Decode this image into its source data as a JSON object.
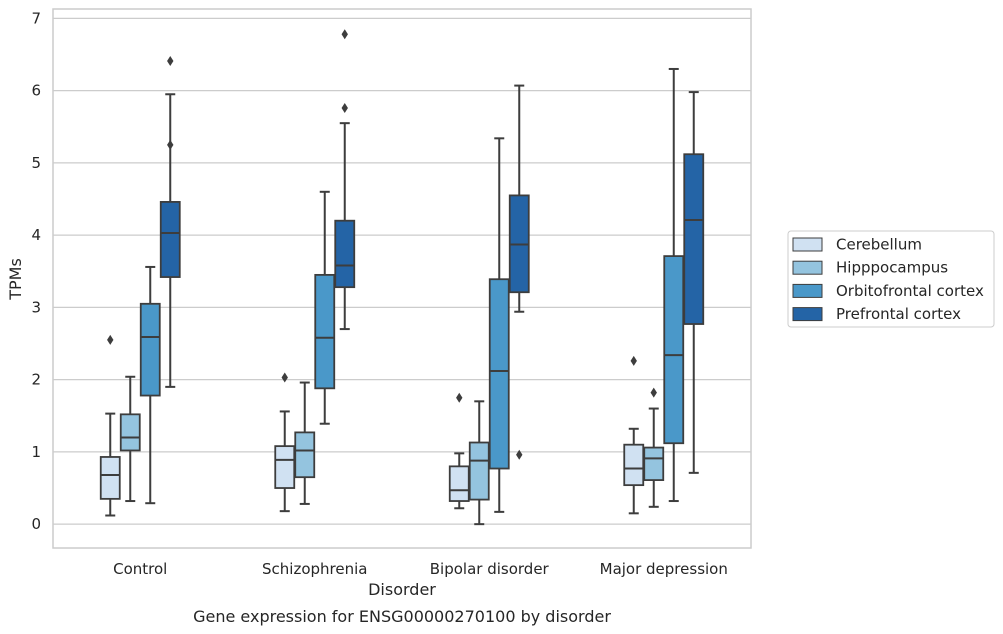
{
  "chart_data": {
    "type": "boxplot",
    "title": "",
    "caption": "Gene expression for ENSG00000270100 by disorder",
    "xlabel": "Disorder",
    "ylabel": "TPMs",
    "ylim": [
      -0.33,
      7.13
    ],
    "yticks": [
      0,
      1,
      2,
      3,
      4,
      5,
      6,
      7
    ],
    "grid": "horizontal",
    "legend_position": "right",
    "categories": [
      "Control",
      "Schizophrenia",
      "Bipolar disorder",
      "Major depression"
    ],
    "series": [
      {
        "name": "Cerebellum",
        "color": "#d0e1f2",
        "boxes": [
          {
            "whisker_low": 0.12,
            "q1": 0.35,
            "median": 0.68,
            "q3": 0.93,
            "whisker_high": 1.53,
            "outliers": [
              2.55
            ]
          },
          {
            "whisker_low": 0.18,
            "q1": 0.5,
            "median": 0.89,
            "q3": 1.08,
            "whisker_high": 1.56,
            "outliers": [
              2.03
            ]
          },
          {
            "whisker_low": 0.22,
            "q1": 0.32,
            "median": 0.47,
            "q3": 0.8,
            "whisker_high": 0.98,
            "outliers": [
              1.75
            ]
          },
          {
            "whisker_low": 0.15,
            "q1": 0.54,
            "median": 0.77,
            "q3": 1.1,
            "whisker_high": 1.32,
            "outliers": [
              2.26
            ]
          }
        ]
      },
      {
        "name": "Hipppocampus",
        "color": "#94c4df",
        "boxes": [
          {
            "whisker_low": 0.32,
            "q1": 1.02,
            "median": 1.2,
            "q3": 1.52,
            "whisker_high": 2.04,
            "outliers": []
          },
          {
            "whisker_low": 0.28,
            "q1": 0.65,
            "median": 1.02,
            "q3": 1.27,
            "whisker_high": 1.96,
            "outliers": []
          },
          {
            "whisker_low": 0.0,
            "q1": 0.34,
            "median": 0.88,
            "q3": 1.13,
            "whisker_high": 1.7,
            "outliers": []
          },
          {
            "whisker_low": 0.24,
            "q1": 0.61,
            "median": 0.91,
            "q3": 1.06,
            "whisker_high": 1.6,
            "outliers": [
              1.82
            ]
          }
        ]
      },
      {
        "name": "Orbitofrontal cortex",
        "color": "#4a98c9",
        "boxes": [
          {
            "whisker_low": 0.29,
            "q1": 1.78,
            "median": 2.59,
            "q3": 3.05,
            "whisker_high": 3.56,
            "outliers": []
          },
          {
            "whisker_low": 1.39,
            "q1": 1.88,
            "median": 2.58,
            "q3": 3.45,
            "whisker_high": 4.6,
            "outliers": []
          },
          {
            "whisker_low": 0.17,
            "q1": 0.77,
            "median": 2.12,
            "q3": 3.39,
            "whisker_high": 5.34,
            "outliers": []
          },
          {
            "whisker_low": 0.32,
            "q1": 1.12,
            "median": 2.34,
            "q3": 3.71,
            "whisker_high": 6.3,
            "outliers": []
          }
        ]
      },
      {
        "name": "Prefrontal cortex",
        "color": "#2464a6",
        "boxes": [
          {
            "whisker_low": 1.9,
            "q1": 3.42,
            "median": 4.03,
            "q3": 4.46,
            "whisker_high": 5.95,
            "outliers": [
              5.25,
              6.41
            ]
          },
          {
            "whisker_low": 2.7,
            "q1": 3.28,
            "median": 3.58,
            "q3": 4.2,
            "whisker_high": 5.55,
            "outliers": [
              5.76,
              6.78
            ]
          },
          {
            "whisker_low": 2.94,
            "q1": 3.21,
            "median": 3.87,
            "q3": 4.55,
            "whisker_high": 6.07,
            "outliers": [
              0.96
            ]
          },
          {
            "whisker_low": 0.71,
            "q1": 2.77,
            "median": 4.21,
            "q3": 5.12,
            "whisker_high": 5.98,
            "outliers": []
          }
        ]
      }
    ]
  }
}
